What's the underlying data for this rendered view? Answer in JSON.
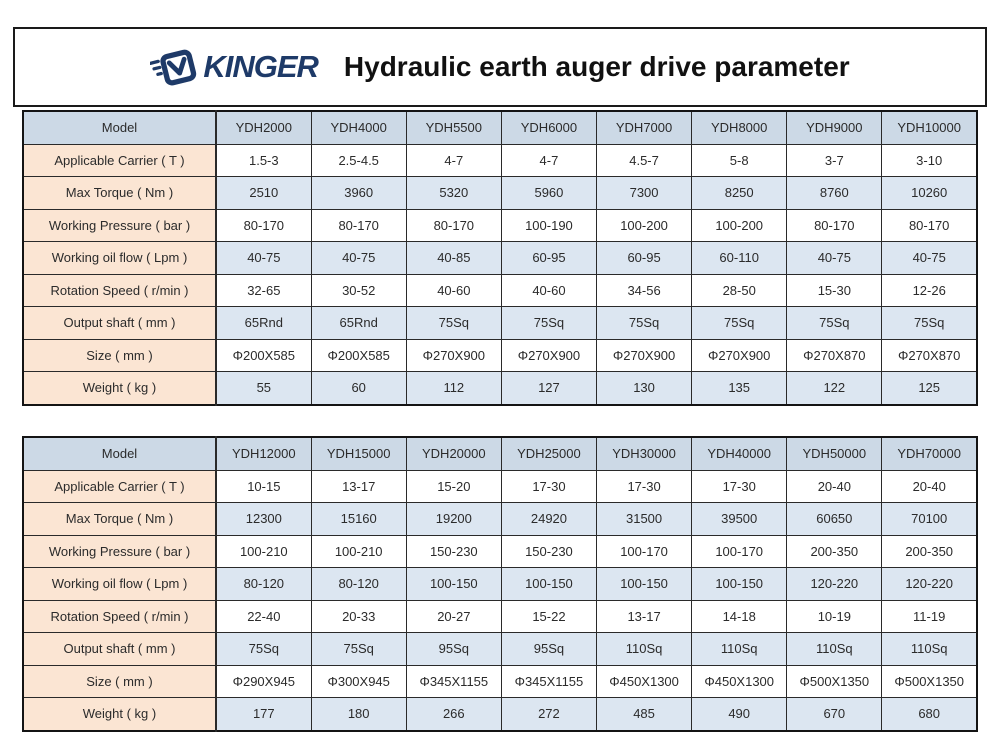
{
  "header": {
    "brand": "KINGER",
    "title": "Hydraulic earth auger drive parameter"
  },
  "colors": {
    "brand_navy": "#1e3a68",
    "model_row_bg": "#ccd9e6",
    "blue_row_bg": "#dce6f1",
    "label_col_bg": "#fbe5d3",
    "border": "#1a1a1a"
  },
  "tables": [
    {
      "header_label": "Model",
      "models": [
        "YDH2000",
        "YDH4000",
        "YDH5500",
        "YDH6000",
        "YDH7000",
        "YDH8000",
        "YDH9000",
        "YDH10000"
      ],
      "rows": [
        {
          "label": "Applicable Carrier ( T )",
          "values": [
            "1.5-3",
            "2.5-4.5",
            "4-7",
            "4-7",
            "4.5-7",
            "5-8",
            "3-7",
            "3-10"
          ]
        },
        {
          "label": "Max Torque ( Nm )",
          "values": [
            "2510",
            "3960",
            "5320",
            "5960",
            "7300",
            "8250",
            "8760",
            "10260"
          ]
        },
        {
          "label": "Working Pressure ( bar )",
          "values": [
            "80-170",
            "80-170",
            "80-170",
            "100-190",
            "100-200",
            "100-200",
            "80-170",
            "80-170"
          ]
        },
        {
          "label": "Working oil flow ( Lpm )",
          "values": [
            "40-75",
            "40-75",
            "40-85",
            "60-95",
            "60-95",
            "60-110",
            "40-75",
            "40-75"
          ]
        },
        {
          "label": "Rotation Speed ( r/min )",
          "values": [
            "32-65",
            "30-52",
            "40-60",
            "40-60",
            "34-56",
            "28-50",
            "15-30",
            "12-26"
          ]
        },
        {
          "label": "Output shaft ( mm )",
          "values": [
            "65Rnd",
            "65Rnd",
            "75Sq",
            "75Sq",
            "75Sq",
            "75Sq",
            "75Sq",
            "75Sq"
          ]
        },
        {
          "label": "Size ( mm )",
          "values": [
            "Φ200X585",
            "Φ200X585",
            "Φ270X900",
            "Φ270X900",
            "Φ270X900",
            "Φ270X900",
            "Φ270X870",
            "Φ270X870"
          ]
        },
        {
          "label": "Weight ( kg )",
          "values": [
            "55",
            "60",
            "112",
            "127",
            "130",
            "135",
            "122",
            "125"
          ]
        }
      ]
    },
    {
      "header_label": "Model",
      "models": [
        "YDH12000",
        "YDH15000",
        "YDH20000",
        "YDH25000",
        "YDH30000",
        "YDH40000",
        "YDH50000",
        "YDH70000"
      ],
      "rows": [
        {
          "label": "Applicable Carrier ( T )",
          "values": [
            "10-15",
            "13-17",
            "15-20",
            "17-30",
            "17-30",
            "17-30",
            "20-40",
            "20-40"
          ]
        },
        {
          "label": "Max Torque ( Nm )",
          "values": [
            "12300",
            "15160",
            "19200",
            "24920",
            "31500",
            "39500",
            "60650",
            "70100"
          ]
        },
        {
          "label": "Working Pressure ( bar )",
          "values": [
            "100-210",
            "100-210",
            "150-230",
            "150-230",
            "100-170",
            "100-170",
            "200-350",
            "200-350"
          ]
        },
        {
          "label": "Working oil flow ( Lpm )",
          "values": [
            "80-120",
            "80-120",
            "100-150",
            "100-150",
            "100-150",
            "100-150",
            "120-220",
            "120-220"
          ]
        },
        {
          "label": "Rotation Speed ( r/min )",
          "values": [
            "22-40",
            "20-33",
            "20-27",
            "15-22",
            "13-17",
            "14-18",
            "10-19",
            "11-19"
          ]
        },
        {
          "label": "Output shaft ( mm )",
          "values": [
            "75Sq",
            "75Sq",
            "95Sq",
            "95Sq",
            "110Sq",
            "110Sq",
            "110Sq",
            "110Sq"
          ]
        },
        {
          "label": "Size ( mm )",
          "values": [
            "Φ290X945",
            "Φ300X945",
            "Φ345X1155",
            "Φ345X1155",
            "Φ450X1300",
            "Φ450X1300",
            "Φ500X1350",
            "Φ500X1350"
          ]
        },
        {
          "label": "Weight ( kg )",
          "values": [
            "177",
            "180",
            "266",
            "272",
            "485",
            "490",
            "670",
            "680"
          ]
        }
      ]
    }
  ]
}
